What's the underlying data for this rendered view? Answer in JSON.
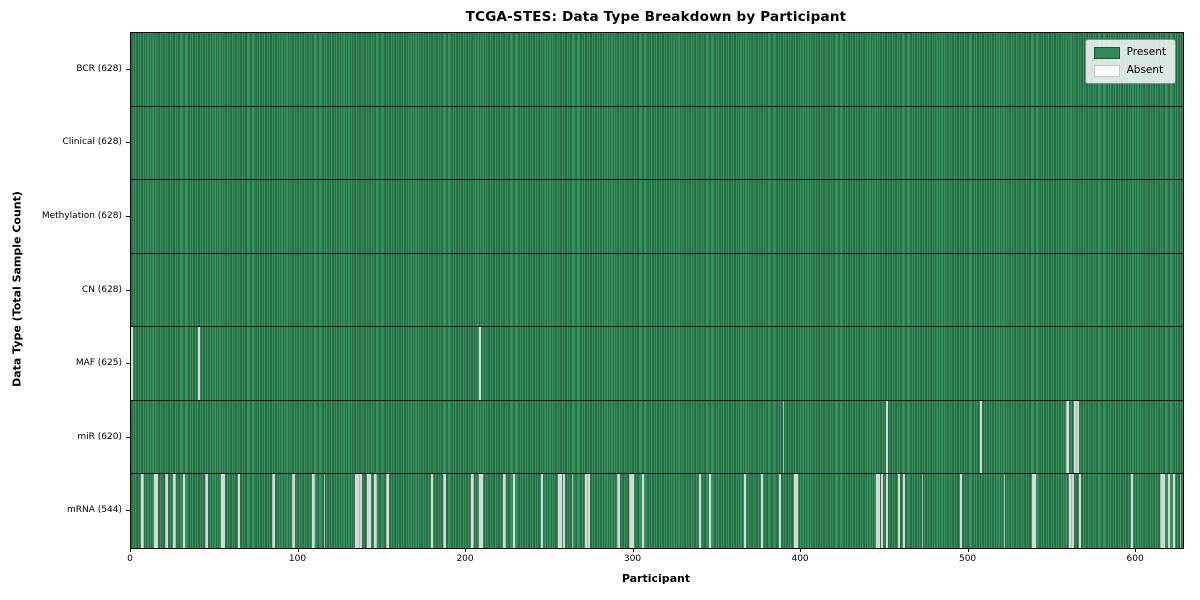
{
  "chart_data": {
    "type": "heatmap",
    "title": "TCGA-STES: Data Type Breakdown by Participant",
    "xlabel": "Participant",
    "ylabel": "Data Type (Total Sample Count)",
    "x_ticks": [
      0,
      100,
      200,
      300,
      400,
      500,
      600
    ],
    "xlim": [
      0,
      628
    ],
    "n_participants": 628,
    "grid": false,
    "legend_position": "upper right",
    "legend": [
      {
        "label": "Present",
        "state": "present",
        "color": "#2e8b57"
      },
      {
        "label": "Absent",
        "state": "absent",
        "color": "#ffffff"
      }
    ],
    "colors": {
      "present": "#2e8b57",
      "absent": "#ffffff",
      "bar_edge": "rgba(0,0,0,0.45)",
      "row_divider": "#000000"
    },
    "rows": [
      {
        "name": "BCR",
        "label": "BCR (628)",
        "present_count": 628,
        "absent_count": 0,
        "absent_participants": []
      },
      {
        "name": "Clinical",
        "label": "Clinical (628)",
        "present_count": 628,
        "absent_count": 0,
        "absent_participants": []
      },
      {
        "name": "Methylation",
        "label": "Methylation (628)",
        "present_count": 628,
        "absent_count": 0,
        "absent_participants": []
      },
      {
        "name": "CN",
        "label": "CN (628)",
        "present_count": 628,
        "absent_count": 0,
        "absent_participants": []
      },
      {
        "name": "MAF",
        "label": "MAF (625)",
        "present_count": 625,
        "absent_count": 3,
        "absent_participants": [
          0,
          40,
          208
        ]
      },
      {
        "name": "miR",
        "label": "miR (620)",
        "present_count": 620,
        "absent_count": 8,
        "absent_participants": [
          389,
          451,
          507,
          558,
          559,
          563,
          564,
          565
        ]
      },
      {
        "name": "mRNA",
        "label": "mRNA (544)",
        "present_count": 544,
        "absent_count": 84,
        "absent_participants": [
          6,
          7,
          14,
          15,
          20,
          21,
          25,
          26,
          31,
          44,
          45,
          54,
          55,
          64,
          84,
          85,
          96,
          97,
          108,
          109,
          115,
          134,
          135,
          136,
          137,
          141,
          142,
          145,
          146,
          152,
          153,
          179,
          186,
          187,
          203,
          204,
          208,
          209,
          222,
          223,
          228,
          245,
          255,
          256,
          258,
          263,
          271,
          272,
          273,
          290,
          291,
          297,
          298,
          299,
          305,
          339,
          345,
          366,
          376,
          387,
          396,
          397,
          445,
          446,
          448,
          451,
          458,
          461,
          472,
          495,
          521,
          538,
          539,
          560,
          561,
          562,
          566,
          597,
          614,
          615,
          616,
          619,
          622,
          626
        ]
      }
    ]
  }
}
